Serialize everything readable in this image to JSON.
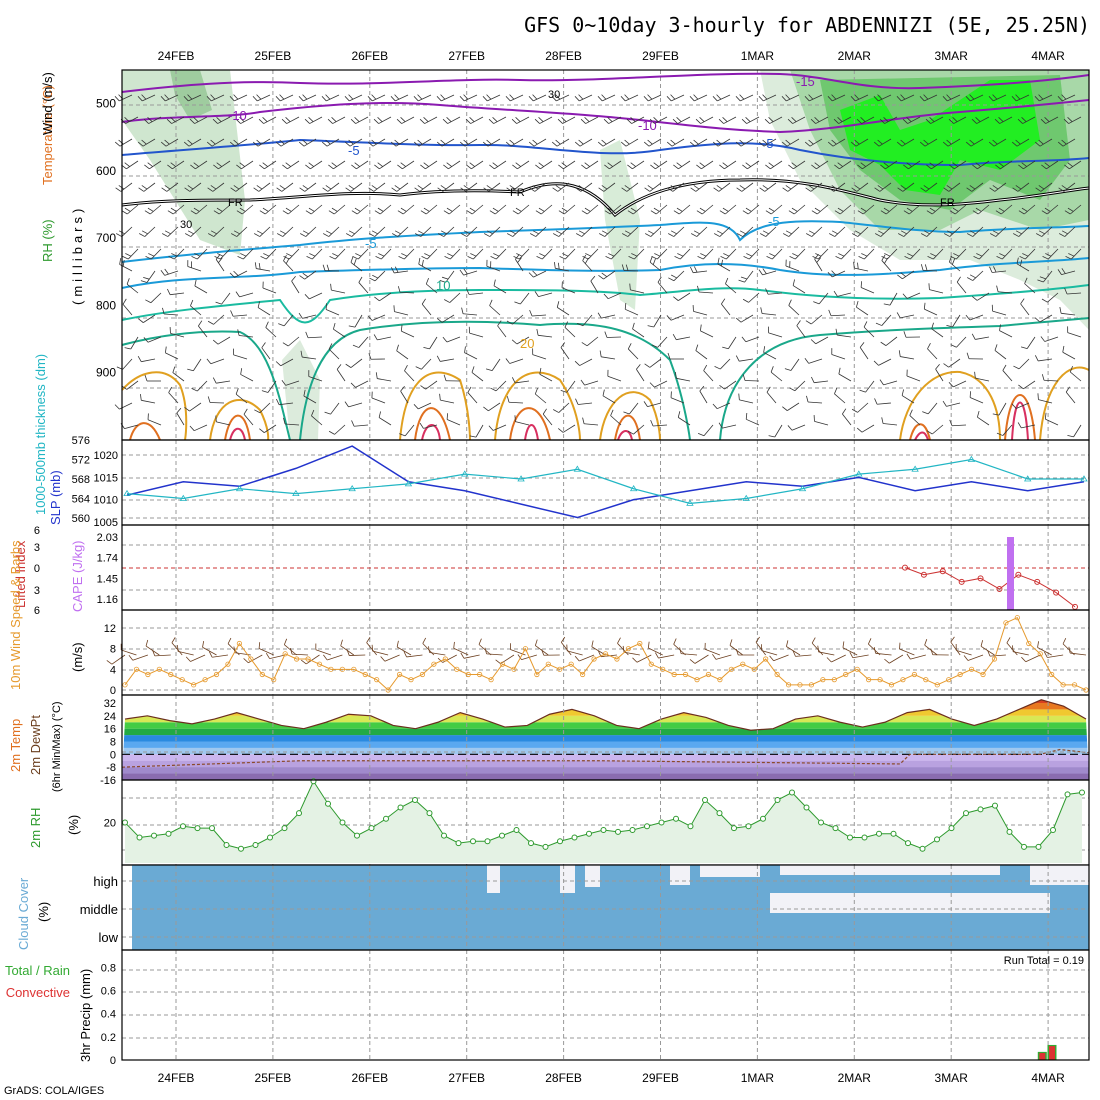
{
  "header": {
    "title": "GFS 0~10day 3-hourly for ABDENNIZI (5E, 25.25N)"
  },
  "footer": {
    "credit": "GrADS: COLA/IGES"
  },
  "colors": {
    "rh_fill": "#cde6cd",
    "rh_line": "#2e9a2e",
    "wind_speed": "#e69a2e",
    "barb": "#6b3e1e",
    "slp": "#2233cc",
    "thickness": "#22b6c4",
    "cape": "#c070f0",
    "li": "#cc3333",
    "cloud": "#6aaad4",
    "cloud_gap": "#f2f2f7",
    "precip_total": "#33aa33",
    "precip_conv": "#dd3333"
  },
  "chart_data": [
    {
      "type": "line",
      "panel": "upper-air",
      "x_dates": [
        "24FEB",
        "25FEB",
        "26FEB",
        "27FEB",
        "28FEB",
        "29FEB",
        "1MAR",
        "2MAR",
        "3MAR",
        "4MAR"
      ],
      "ylabel_parts": [
        "RH (%)",
        "Temperature (°C)",
        "Wind (m/s)"
      ],
      "ylabel_units": "(millibars)",
      "yticks": [
        500,
        600,
        700,
        800,
        900
      ],
      "ylim": [
        1000,
        450
      ],
      "isotherm_labels": [
        "-10",
        "-10",
        "-5",
        "-5",
        "-5",
        "-5",
        "FR",
        "FR",
        "FR",
        "10",
        "20",
        "-15",
        "30",
        "30"
      ]
    },
    {
      "type": "line",
      "panel": "slp-thickness",
      "series": [
        {
          "name": "SLP (mb)",
          "values": [
            1011,
            1014,
            1013,
            1017,
            1022,
            1014,
            1012,
            1009,
            1006,
            1010,
            1012,
            1014,
            1013,
            1015,
            1012,
            1014,
            1012,
            1014
          ]
        },
        {
          "name": "1000-500mb thickness (dm)",
          "values": [
            565,
            564,
            566,
            565,
            566,
            567,
            569,
            568,
            570,
            566,
            563,
            564,
            566,
            569,
            570,
            572,
            568,
            568
          ]
        }
      ],
      "ylabel": "1000-500mb thickness (dm)",
      "ylabel2": "SLP (mb)",
      "yticks_left": [
        "576",
        "572",
        "568",
        "564",
        "560"
      ],
      "yticks_right": [
        "1020",
        "1015",
        "1010",
        "1005"
      ]
    },
    {
      "type": "line",
      "panel": "li-cape",
      "ylabel": "Lifted Index",
      "ylabel2": "CAPE (J/kg)",
      "yticks_left": [
        "6",
        "3",
        "0",
        "3",
        "6"
      ],
      "yticks_right": [
        "2.03",
        "1.74",
        "1.45",
        "1.16"
      ],
      "li_values": [
        1.6,
        1.5,
        1.55,
        1.4,
        1.45,
        1.3,
        1.5,
        1.4,
        1.25,
        1.05
      ],
      "cape_bar_value": 2.03
    },
    {
      "type": "line",
      "panel": "wind10m",
      "ylabel": "10m Wind Speed & Barbs",
      "ylabel_units": "(m/s)",
      "yticks": [
        "12",
        "8",
        "4",
        "0"
      ],
      "speed_values": [
        1,
        4,
        3,
        4,
        3,
        2,
        1,
        2,
        3,
        5,
        9,
        6,
        3,
        2,
        7,
        6,
        6,
        5,
        4,
        4,
        4,
        3,
        2,
        0,
        3,
        2,
        3,
        5,
        6,
        4,
        3,
        3,
        2,
        5,
        4,
        8,
        3,
        5,
        4,
        5,
        3,
        6,
        7,
        6,
        8,
        9,
        5,
        4,
        3,
        3,
        2,
        3,
        2,
        4,
        5,
        4,
        6,
        3,
        1,
        1,
        1,
        2,
        2,
        3,
        4,
        2,
        2,
        1,
        2,
        3,
        2,
        1,
        2,
        3,
        4,
        3,
        6,
        13,
        14,
        9,
        7,
        3,
        1,
        1,
        0
      ]
    },
    {
      "type": "area",
      "panel": "temp2m",
      "ylabel": "2m Temp",
      "ylabel2": "2m DewPt",
      "ylabel3": "(6hr Min/Max) (°C)",
      "yticks": [
        "32",
        "24",
        "16",
        "8",
        "0",
        "-8",
        "-16"
      ],
      "temp_values": [
        22,
        24,
        21,
        19,
        22,
        26,
        22,
        18,
        16,
        20,
        25,
        24,
        18,
        16,
        20,
        26,
        22,
        17,
        18,
        25,
        28,
        24,
        18,
        16,
        22,
        26,
        23,
        18,
        15,
        16,
        22,
        24,
        20,
        17,
        20,
        26,
        28,
        22,
        18,
        22,
        28,
        34,
        30,
        22
      ]
    },
    {
      "type": "area",
      "panel": "rh2m",
      "ylabel": "2m RH",
      "ylabel_units": "(%)",
      "yticks": [
        "20"
      ],
      "values": [
        20,
        12,
        13,
        14,
        18,
        17,
        17,
        8,
        6,
        8,
        12,
        17,
        25,
        42,
        30,
        20,
        13,
        17,
        22,
        28,
        32,
        25,
        13,
        9,
        10,
        10,
        13,
        16,
        9,
        7,
        10,
        12,
        14,
        16,
        15,
        16,
        18,
        20,
        22,
        18,
        32,
        25,
        17,
        18,
        22,
        32,
        36,
        28,
        20,
        17,
        12,
        12,
        14,
        14,
        9,
        6,
        11,
        17,
        25,
        27,
        29,
        15,
        7,
        7,
        16,
        35,
        36
      ]
    },
    {
      "type": "bar",
      "panel": "cloud",
      "ylabel": "Cloud Cover",
      "ylabel_units": "(%)",
      "levels": [
        "high",
        "middle",
        "low"
      ]
    },
    {
      "type": "bar",
      "panel": "precip",
      "ylabel": "3hr Precip (mm)",
      "legend": [
        "Total / Rain",
        "Convective"
      ],
      "yticks": [
        "0.8",
        "0.6",
        "0.4",
        "0.2",
        "0"
      ],
      "ylim": [
        0,
        0.95
      ],
      "run_total": "Run Total = 0.19",
      "bars": [
        {
          "date_index": 9.1,
          "total": 0.07,
          "conv": 0.06
        },
        {
          "date_index": 9.2,
          "total": 0.13,
          "conv": 0.12
        }
      ]
    }
  ]
}
